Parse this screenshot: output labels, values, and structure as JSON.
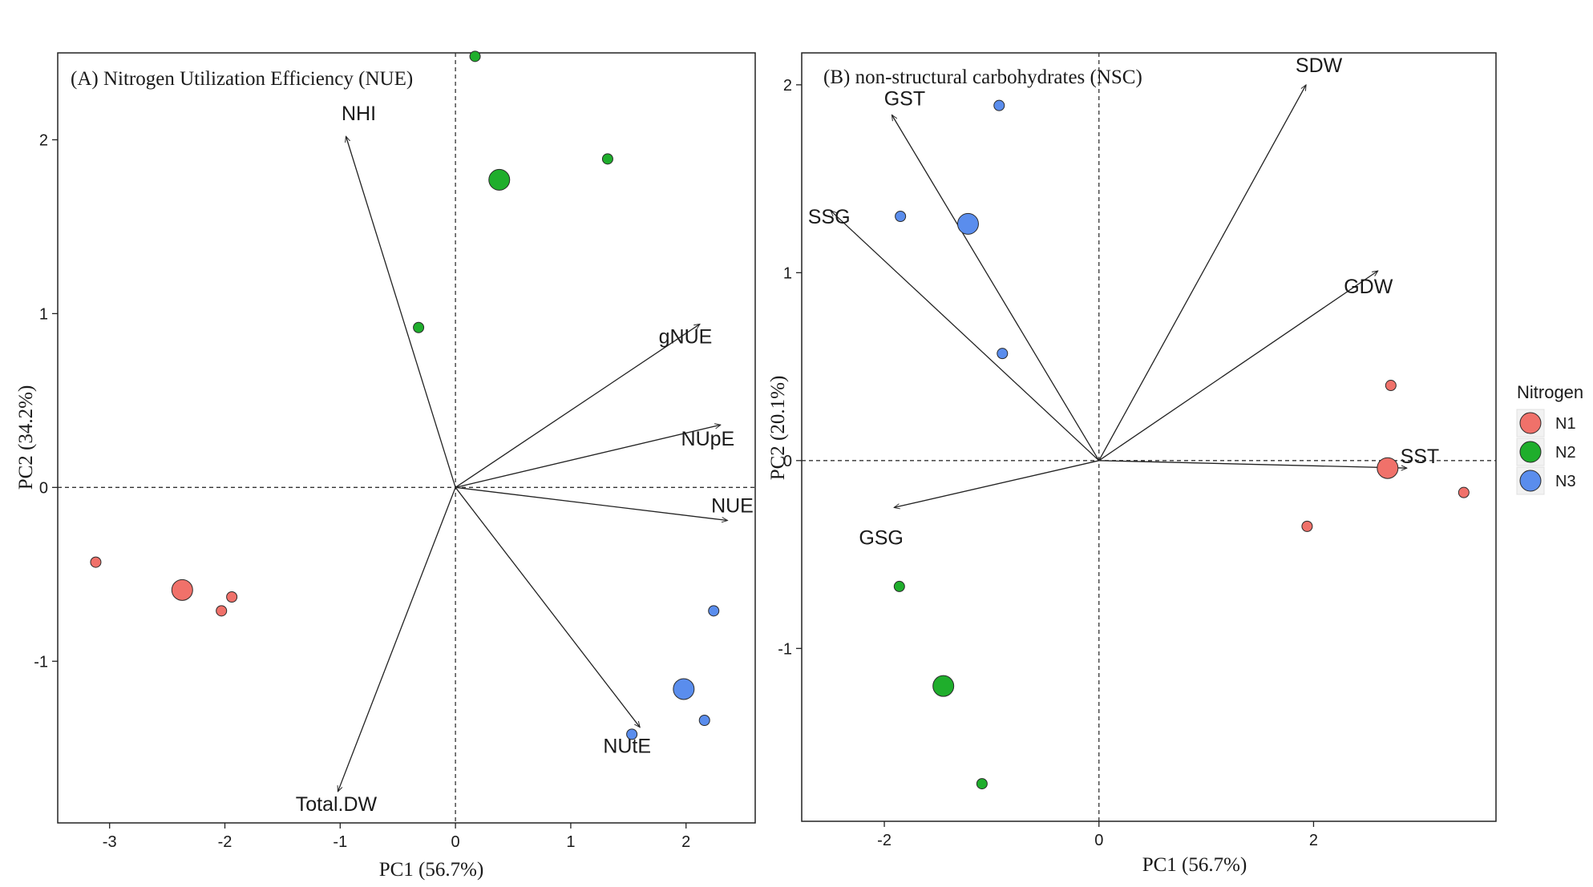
{
  "chart_data": [
    {
      "type": "scatter",
      "subtype": "pca-biplot",
      "title": "(A) Nitrogen Utilization Efficiency (NUE)",
      "xlabel": "PC1 (56.7%)",
      "ylabel": "PC2 (34.2%)",
      "xlim": [
        -3.45,
        2.6
      ],
      "ylim": [
        -1.93,
        2.5
      ],
      "xticks": [
        {
          "value": -3,
          "label": "-3"
        },
        {
          "value": -2,
          "label": "-2"
        },
        {
          "value": -1,
          "label": "-1"
        },
        {
          "value": 0,
          "label": "0"
        },
        {
          "value": 1,
          "label": "1"
        },
        {
          "value": 2,
          "label": "2"
        }
      ],
      "yticks": [
        {
          "value": -1,
          "label": "-1"
        },
        {
          "value": 0,
          "label": "0"
        },
        {
          "value": 1,
          "label": "1"
        },
        {
          "value": 2,
          "label": "2"
        }
      ],
      "grid": false,
      "reference_lines": {
        "x": 0,
        "y": 0,
        "style": "dashed"
      },
      "points": [
        {
          "group": "N1",
          "x": -3.12,
          "y": -0.43,
          "kind": "sample"
        },
        {
          "group": "N1",
          "x": -2.37,
          "y": -0.59,
          "kind": "centroid"
        },
        {
          "group": "N1",
          "x": -2.03,
          "y": -0.71,
          "kind": "sample"
        },
        {
          "group": "N1",
          "x": -1.94,
          "y": -0.63,
          "kind": "sample"
        },
        {
          "group": "N2",
          "x": 0.17,
          "y": 2.48,
          "kind": "sample"
        },
        {
          "group": "N2",
          "x": 1.32,
          "y": 1.89,
          "kind": "sample"
        },
        {
          "group": "N2",
          "x": 0.38,
          "y": 1.77,
          "kind": "centroid"
        },
        {
          "group": "N2",
          "x": -0.32,
          "y": 0.92,
          "kind": "sample"
        },
        {
          "group": "N3",
          "x": 2.24,
          "y": -0.71,
          "kind": "sample"
        },
        {
          "group": "N3",
          "x": 1.98,
          "y": -1.16,
          "kind": "centroid"
        },
        {
          "group": "N3",
          "x": 2.16,
          "y": -1.34,
          "kind": "sample"
        },
        {
          "group": "N3",
          "x": 1.53,
          "y": -1.42,
          "kind": "sample"
        }
      ],
      "loadings": [
        {
          "label": "NHI",
          "x": -0.95,
          "y": 2.02
        },
        {
          "label": "gNUE",
          "x": 2.12,
          "y": 0.94
        },
        {
          "label": "NUpE",
          "x": 2.3,
          "y": 0.36
        },
        {
          "label": "NUE",
          "x": 2.36,
          "y": -0.19
        },
        {
          "label": "NUtE",
          "x": 1.6,
          "y": -1.38
        },
        {
          "label": "Total.DW",
          "x": -1.02,
          "y": -1.75
        }
      ]
    },
    {
      "type": "scatter",
      "subtype": "pca-biplot",
      "title": "(B) non-structural carbohydrates (NSC)",
      "xlabel": "PC1 (56.7%)",
      "ylabel": "PC2 (20.1%)",
      "xlim": [
        -2.77,
        3.7
      ],
      "ylim": [
        -1.92,
        2.17
      ],
      "xticks": [
        {
          "value": -2,
          "label": "-2"
        },
        {
          "value": 0,
          "label": "0"
        },
        {
          "value": 2,
          "label": "2"
        }
      ],
      "yticks": [
        {
          "value": -1,
          "label": "-1"
        },
        {
          "value": 0,
          "label": "0"
        },
        {
          "value": 1,
          "label": "1"
        },
        {
          "value": 2,
          "label": "2"
        }
      ],
      "grid": false,
      "reference_lines": {
        "x": 0,
        "y": 0,
        "style": "dashed"
      },
      "points": [
        {
          "group": "N1",
          "x": 2.72,
          "y": 0.4,
          "kind": "sample"
        },
        {
          "group": "N1",
          "x": 2.69,
          "y": -0.04,
          "kind": "centroid"
        },
        {
          "group": "N1",
          "x": 3.4,
          "y": -0.17,
          "kind": "sample"
        },
        {
          "group": "N1",
          "x": 1.94,
          "y": -0.35,
          "kind": "sample"
        },
        {
          "group": "N2",
          "x": -1.86,
          "y": -0.67,
          "kind": "sample"
        },
        {
          "group": "N2",
          "x": -1.45,
          "y": -1.2,
          "kind": "centroid"
        },
        {
          "group": "N2",
          "x": -1.09,
          "y": -1.72,
          "kind": "sample"
        },
        {
          "group": "N3",
          "x": -0.93,
          "y": 1.89,
          "kind": "sample"
        },
        {
          "group": "N3",
          "x": -1.85,
          "y": 1.3,
          "kind": "sample"
        },
        {
          "group": "N3",
          "x": -1.22,
          "y": 1.26,
          "kind": "centroid"
        },
        {
          "group": "N3",
          "x": -0.9,
          "y": 0.57,
          "kind": "sample"
        }
      ],
      "loadings": [
        {
          "label": "SDW",
          "x": 1.93,
          "y": 2.0
        },
        {
          "label": "GST",
          "x": -1.93,
          "y": 1.84
        },
        {
          "label": "SSG",
          "x": -2.5,
          "y": 1.33
        },
        {
          "label": "GDW",
          "x": 2.6,
          "y": 1.01
        },
        {
          "label": "SST",
          "x": 2.87,
          "y": -0.04
        },
        {
          "label": "GSG",
          "x": -1.91,
          "y": -0.25
        }
      ]
    }
  ],
  "legend": {
    "title": "Nitrogen",
    "placement": "right",
    "items": [
      {
        "label": "N1",
        "color": "#f0716a"
      },
      {
        "label": "N2",
        "color": "#1fae2c"
      },
      {
        "label": "N3",
        "color": "#5a8ded"
      }
    ]
  }
}
